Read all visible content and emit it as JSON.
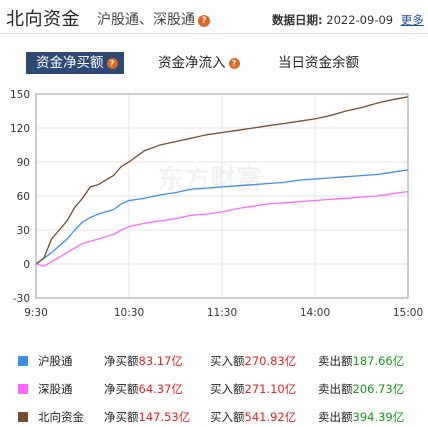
{
  "header": {
    "title": "北向资金",
    "subtitle": "沪股通、深股通",
    "date_label": "数据日期:",
    "date_value": "2022-09-09",
    "more_label": "更多"
  },
  "tabs": [
    {
      "label": "资金净买额",
      "active": true,
      "has_help": true
    },
    {
      "label": "资金净流入",
      "active": false,
      "has_help": true
    },
    {
      "label": "当日资金余额",
      "active": false,
      "has_help": false
    }
  ],
  "help_glyph": "?",
  "watermark": "东方财富",
  "chart_data": {
    "type": "line",
    "x_ticks": [
      "9:30",
      "10:30",
      "11:30",
      "14:00",
      "15:00"
    ],
    "ylim": [
      -30,
      150
    ],
    "y_ticks": [
      -30,
      0,
      30,
      60,
      90,
      120,
      150
    ],
    "grid": true,
    "series": [
      {
        "name": "沪股通",
        "color": "#3b8eea",
        "x": [
          0,
          5,
          10,
          15,
          20,
          25,
          30,
          35,
          40,
          45,
          50,
          55,
          60,
          70,
          80,
          90,
          100,
          110,
          120,
          130,
          140,
          150,
          160,
          170,
          180,
          190,
          200,
          210,
          220,
          230,
          240
        ],
        "values": [
          0,
          5,
          10,
          16,
          22,
          30,
          37,
          41,
          44,
          46,
          48,
          53,
          56,
          58,
          61,
          63,
          66,
          67,
          68,
          69,
          70,
          71,
          72,
          74,
          75,
          76,
          77,
          78,
          79,
          81,
          83
        ]
      },
      {
        "name": "深股通",
        "color": "#ff66ff",
        "x": [
          0,
          5,
          10,
          15,
          20,
          25,
          30,
          35,
          40,
          45,
          50,
          55,
          60,
          70,
          80,
          90,
          100,
          110,
          120,
          130,
          140,
          150,
          160,
          170,
          180,
          190,
          200,
          210,
          220,
          230,
          240
        ],
        "values": [
          0,
          -2,
          2,
          6,
          10,
          14,
          18,
          20,
          22,
          24,
          26,
          30,
          33,
          36,
          38,
          40,
          43,
          44,
          46,
          49,
          51,
          53,
          54,
          55,
          56,
          57,
          58,
          59,
          60,
          62,
          64
        ]
      },
      {
        "name": "北向资金",
        "color": "#7a4a2a",
        "x": [
          0,
          5,
          10,
          15,
          20,
          25,
          30,
          35,
          40,
          45,
          50,
          55,
          60,
          70,
          80,
          90,
          100,
          110,
          120,
          130,
          140,
          150,
          160,
          170,
          180,
          190,
          200,
          210,
          220,
          230,
          240
        ],
        "values": [
          0,
          5,
          22,
          30,
          38,
          50,
          58,
          68,
          70,
          74,
          78,
          86,
          90,
          100,
          105,
          108,
          111,
          114,
          116,
          118,
          120,
          122,
          124,
          126,
          128,
          131,
          135,
          138,
          142,
          145,
          147.5
        ]
      }
    ]
  },
  "legend": [
    {
      "name": "沪股通",
      "color": "#3b8eea",
      "net_label": "净买额",
      "net_value": "83.17亿",
      "buy_label": "买入额",
      "buy_value": "270.83亿",
      "sell_label": "卖出额",
      "sell_value": "187.66亿"
    },
    {
      "name": "深股通",
      "color": "#ff66ff",
      "net_label": "净买额",
      "net_value": "64.37亿",
      "buy_label": "买入额",
      "buy_value": "271.10亿",
      "sell_label": "卖出额",
      "sell_value": "206.73亿"
    },
    {
      "name": "北向资金",
      "color": "#7a4a2a",
      "net_label": "净买额",
      "net_value": "147.53亿",
      "buy_label": "买入额",
      "buy_value": "541.92亿",
      "sell_label": "卖出额",
      "sell_value": "394.39亿"
    }
  ]
}
